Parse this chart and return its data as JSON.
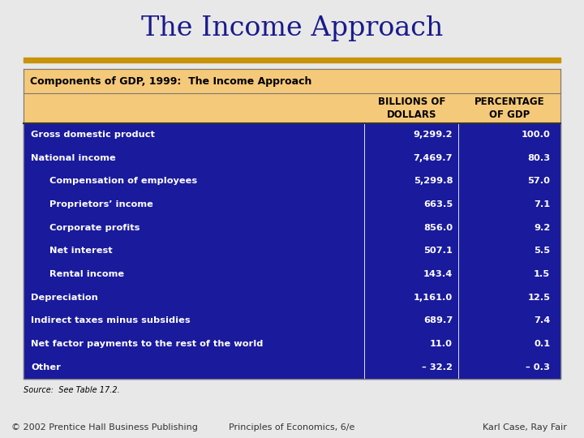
{
  "title": "The Income Approach",
  "title_color": "#1a1a8c",
  "title_fontsize": 24,
  "bg_color": "#e8e8e8",
  "header_bg": "#f5c97a",
  "table_bg": "#1a1a9c",
  "table_text_color": "#ffffff",
  "header_text_color": "#000000",
  "top_bar_color": "#c8920a",
  "table_title": "Components of GDP, 1999:  The Income Approach",
  "col_headers": [
    "BILLIONS OF\nDOLLARS",
    "PERCENTAGE\nOF GDP"
  ],
  "rows": [
    {
      "label": "Gross domestic product",
      "indent": 0,
      "billions": "9,299.2",
      "pct": "100.0"
    },
    {
      "label": "National income",
      "indent": 0,
      "billions": "7,469.7",
      "pct": "80.3"
    },
    {
      "label": "Compensation of employees",
      "indent": 1,
      "billions": "5,299.8",
      "pct": "57.0"
    },
    {
      "label": "Proprietors’ income",
      "indent": 1,
      "billions": "663.5",
      "pct": "7.1"
    },
    {
      "label": "Corporate profits",
      "indent": 1,
      "billions": "856.0",
      "pct": "9.2"
    },
    {
      "label": "Net interest",
      "indent": 1,
      "billions": "507.1",
      "pct": "5.5"
    },
    {
      "label": "Rental income",
      "indent": 1,
      "billions": "143.4",
      "pct": "1.5"
    },
    {
      "label": "Depreciation",
      "indent": 0,
      "billions": "1,161.0",
      "pct": "12.5"
    },
    {
      "label": "Indirect taxes minus subsidies",
      "indent": 0,
      "billions": "689.7",
      "pct": "7.4"
    },
    {
      "label": "Net factor payments to the rest of the world",
      "indent": 0,
      "billions": "11.0",
      "pct": "0.1"
    },
    {
      "label": "Other",
      "indent": 0,
      "billions": "– 32.2",
      "pct": "– 0.3"
    }
  ],
  "source_text": "Source:  See Table 17.2.",
  "footer_left": "© 2002 Prentice Hall Business Publishing",
  "footer_center": "Principles of Economics, 6/e",
  "footer_right": "Karl Case, Ray Fair",
  "footer_color": "#333333",
  "footer_fontsize": 8
}
